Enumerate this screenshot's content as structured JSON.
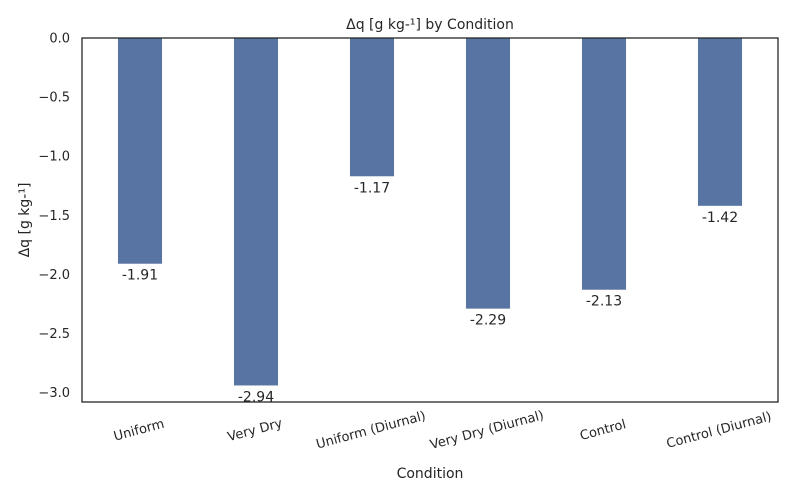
{
  "chart_data": {
    "type": "bar",
    "title": "Δq [g kg-¹] by Condition",
    "xlabel": "Condition",
    "ylabel": "Δq [g kg-¹]",
    "categories": [
      "Uniform",
      "Very Dry",
      "Uniform (Diurnal)",
      "Very Dry (Diurnal)",
      "Control",
      "Control (Diurnal)"
    ],
    "values": [
      -1.91,
      -2.94,
      -1.17,
      -2.29,
      -2.13,
      -1.42
    ],
    "data_labels": [
      "-1.91",
      "-2.94",
      "-1.17",
      "-2.29",
      "-2.13",
      "-1.42"
    ],
    "ylim": [
      -3.08,
      0.0
    ],
    "yticks": [
      0.0,
      -0.5,
      -1.0,
      -1.5,
      -2.0,
      -2.5,
      -3.0
    ],
    "ytick_labels": [
      "0.0",
      "−0.5",
      "−1.0",
      "−1.5",
      "−2.0",
      "−2.5",
      "−3.0"
    ],
    "grid": false,
    "bar_color": "#5874a3"
  }
}
